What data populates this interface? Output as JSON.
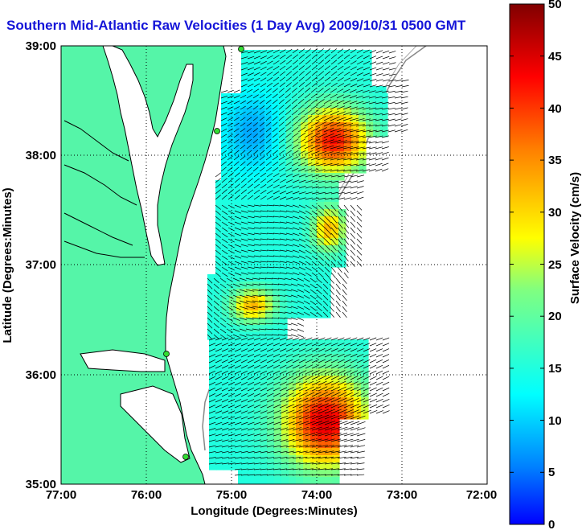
{
  "title": "Southern Mid-Atlantic Raw Velocities (1 Day Avg) 2009/10/31 0500 GMT",
  "axes": {
    "xlabel": "Longitude (Degrees:Minutes)",
    "ylabel": "Latitude (Degrees:Minutes)",
    "x_ticks": [
      "77:00",
      "76:00",
      "75:00",
      "74:00",
      "73:00",
      "72:00"
    ],
    "y_ticks": [
      "39:00",
      "38:00",
      "37:00",
      "36:00",
      "35:00"
    ]
  },
  "colorbar": {
    "label": "Surface Velocity (cm/s)",
    "ticks": [
      "50",
      "45",
      "40",
      "35",
      "30",
      "25",
      "20",
      "15",
      "10",
      "5",
      "0"
    ],
    "min": 0,
    "max": 50,
    "colormap": "jet"
  },
  "map": {
    "lon_range": [
      -77,
      -72
    ],
    "lat_range": [
      35,
      39
    ],
    "land_color": "#55f5a8",
    "station_color": "#33dd33",
    "grid": "dotted",
    "vector_color": "#000000"
  }
}
